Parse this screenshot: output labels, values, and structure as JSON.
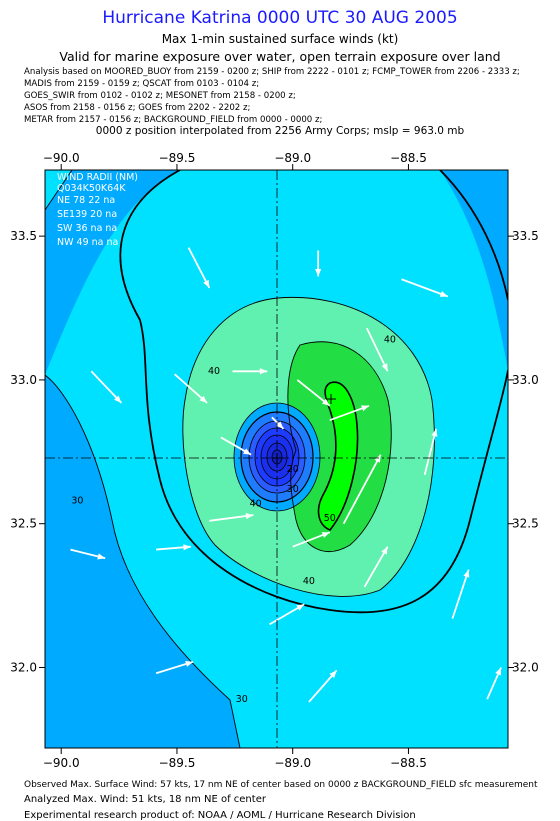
{
  "header": {
    "title": "Hurricane Katrina 0000 UTC 30 AUG 2005",
    "subtitle": "Max 1-min sustained surface winds (kt)",
    "valid": "Valid for marine exposure over water, open terrain exposure over land",
    "analysis_lines": [
      "Analysis based on   MOORED_BUOY from 2159 - 0200 z;   SHIP from 2222 - 0101 z;   FCMP_TOWER from 2206 - 2333 z;",
      "MADIS from 2159 - 0159 z;   QSCAT from 0103 - 0104 z;",
      "GOES_SWIR from 0102 - 0102 z;   MESONET from 2158 - 0200 z;",
      "ASOS from 2158 - 0156 z;   GOES from 2202 - 2202 z;",
      "METAR from 2157 - 0156 z;   BACKGROUND_FIELD from 0000 - 0000 z;"
    ],
    "position_note": "0000 z position interpolated from 2256 Army Corps; mslp = 963.0 mb"
  },
  "wind_radii": {
    "title": "WIND RADII (NM)",
    "header": "Q034K50K64K",
    "rows": [
      "NE  78  22  na",
      "SE139  20  na",
      "SW  36  na  na",
      "NW 49  na  na"
    ]
  },
  "footer": {
    "observed": "Observed Max. Surface Wind: 57 kts, 17 nm NE of center based on 0000 z BACKGROUND_FIELD sfc measurement",
    "analyzed": "Analyzed Max. Wind: 51 kts, 18 nm NE of center",
    "experimental": "Experimental research product of: NOAA / AOML / Hurricane Research Division"
  },
  "colors": {
    "title": "#1a1aff",
    "lt30": "#00aaff",
    "c30_40": "#00e0ff",
    "c40_50": "#60f0b0",
    "c50_55": "#22dd44",
    "gt55": "#00ff00",
    "eye": "#1e3cff",
    "vectors": "#ffffff"
  },
  "chart_data": {
    "type": "contour",
    "x_ticks": [
      -90.0,
      -89.5,
      -89.0,
      -88.5
    ],
    "x_tick_labels": [
      "−90.0",
      "−89.5",
      "−89.0",
      "−88.5"
    ],
    "y_ticks": [
      32.0,
      32.5,
      33.0,
      33.5
    ],
    "y_tick_labels": [
      "32.0",
      "32.5",
      "33.0",
      "33.5"
    ],
    "xlim": [
      -90.07,
      -88.07
    ],
    "ylim": [
      31.72,
      33.73
    ],
    "center": [
      -89.03,
      32.74
    ],
    "max_wind_location": [
      -88.82,
      32.93
    ],
    "contour_labels": [
      {
        "text": "30",
        "x": -89.93,
        "y": 32.57
      },
      {
        "text": "30",
        "x": -89.22,
        "y": 31.88
      },
      {
        "text": "40",
        "x": -89.34,
        "y": 33.02
      },
      {
        "text": "40",
        "x": -88.58,
        "y": 33.13
      },
      {
        "text": "40",
        "x": -89.16,
        "y": 32.56
      },
      {
        "text": "40",
        "x": -88.93,
        "y": 32.29
      },
      {
        "text": "50",
        "x": -88.84,
        "y": 32.51
      },
      {
        "text": "20",
        "x": -89.0,
        "y": 32.68
      },
      {
        "text": "30",
        "x": -89.0,
        "y": 32.61
      }
    ],
    "wind_vectors": [
      {
        "x0": -89.45,
        "y0": 33.46,
        "x1": -89.36,
        "y1": 33.32
      },
      {
        "x0": -89.26,
        "y0": 33.03,
        "x1": -89.11,
        "y1": 33.03
      },
      {
        "x0": -88.89,
        "y0": 33.45,
        "x1": -88.89,
        "y1": 33.36
      },
      {
        "x0": -88.53,
        "y0": 33.35,
        "x1": -88.33,
        "y1": 33.29
      },
      {
        "x0": -89.87,
        "y0": 33.03,
        "x1": -89.74,
        "y1": 32.92
      },
      {
        "x0": -89.51,
        "y0": 33.02,
        "x1": -89.37,
        "y1": 32.92
      },
      {
        "x0": -89.09,
        "y0": 32.87,
        "x1": -89.04,
        "y1": 32.83
      },
      {
        "x0": -88.98,
        "y0": 33.0,
        "x1": -88.84,
        "y1": 32.91
      },
      {
        "x0": -88.84,
        "y0": 32.86,
        "x1": -88.67,
        "y1": 32.91
      },
      {
        "x0": -88.68,
        "y0": 33.18,
        "x1": -88.59,
        "y1": 33.03
      },
      {
        "x0": -88.43,
        "y0": 32.67,
        "x1": -88.38,
        "y1": 32.83
      },
      {
        "x0": -89.31,
        "y0": 32.8,
        "x1": -89.18,
        "y1": 32.74
      },
      {
        "x0": -89.36,
        "y0": 32.51,
        "x1": -89.17,
        "y1": 32.53
      },
      {
        "x0": -89.96,
        "y0": 32.41,
        "x1": -89.81,
        "y1": 32.38
      },
      {
        "x0": -89.59,
        "y0": 32.41,
        "x1": -89.44,
        "y1": 32.42
      },
      {
        "x0": -89.0,
        "y0": 32.42,
        "x1": -88.84,
        "y1": 32.47
      },
      {
        "x0": -88.78,
        "y0": 32.5,
        "x1": -88.62,
        "y1": 32.74
      },
      {
        "x0": -88.69,
        "y0": 32.28,
        "x1": -88.59,
        "y1": 32.42
      },
      {
        "x0": -89.1,
        "y0": 32.15,
        "x1": -88.95,
        "y1": 32.22
      },
      {
        "x0": -88.31,
        "y0": 32.17,
        "x1": -88.24,
        "y1": 32.34
      },
      {
        "x0": -89.59,
        "y0": 31.98,
        "x1": -89.43,
        "y1": 32.02
      },
      {
        "x0": -88.93,
        "y0": 31.88,
        "x1": -88.81,
        "y1": 31.99
      },
      {
        "x0": -88.16,
        "y0": 31.89,
        "x1": -88.1,
        "y1": 32.0
      }
    ]
  }
}
